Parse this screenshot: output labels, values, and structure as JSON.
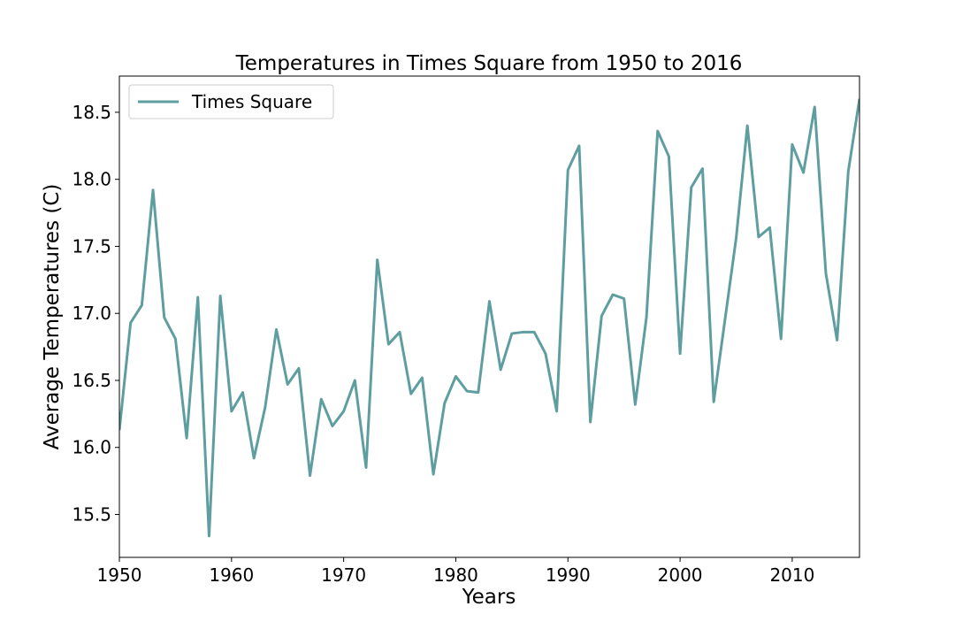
{
  "chart_data": {
    "type": "line",
    "title": "Temperatures in Times Square from 1950 to 2016",
    "xlabel": "Years",
    "ylabel": "Average Temperatures (C)",
    "xlim": [
      1950,
      2016
    ],
    "ylim": [
      15.18,
      18.77
    ],
    "x_ticks": [
      1950,
      1960,
      1970,
      1980,
      1990,
      2000,
      2010
    ],
    "y_ticks": [
      "15.5",
      "16.0",
      "16.5",
      "17.0",
      "17.5",
      "18.0",
      "18.5"
    ],
    "grid": false,
    "legend_position": "upper-left",
    "series": [
      {
        "name": "Times Square",
        "color": "#5f9ea0",
        "x": [
          1950,
          1951,
          1952,
          1953,
          1954,
          1955,
          1956,
          1957,
          1958,
          1959,
          1960,
          1961,
          1962,
          1963,
          1964,
          1965,
          1966,
          1967,
          1968,
          1969,
          1970,
          1971,
          1972,
          1973,
          1974,
          1975,
          1976,
          1977,
          1978,
          1979,
          1980,
          1981,
          1982,
          1983,
          1984,
          1985,
          1986,
          1987,
          1988,
          1989,
          1990,
          1991,
          1992,
          1993,
          1994,
          1995,
          1996,
          1997,
          1998,
          1999,
          2000,
          2001,
          2002,
          2003,
          2004,
          2005,
          2006,
          2007,
          2008,
          2009,
          2010,
          2011,
          2012,
          2013,
          2014,
          2015,
          2016
        ],
        "values": [
          16.13,
          16.93,
          17.06,
          17.92,
          16.97,
          16.81,
          16.07,
          17.12,
          15.34,
          17.13,
          16.27,
          16.41,
          15.92,
          16.3,
          16.88,
          16.47,
          16.59,
          15.79,
          16.36,
          16.16,
          16.27,
          16.5,
          15.85,
          17.4,
          16.77,
          16.86,
          16.4,
          16.52,
          15.8,
          16.33,
          16.53,
          16.42,
          16.41,
          17.09,
          16.58,
          16.85,
          16.86,
          16.86,
          16.7,
          16.27,
          18.07,
          18.25,
          16.19,
          16.98,
          17.14,
          17.11,
          16.32,
          16.97,
          18.36,
          18.17,
          16.7,
          17.94,
          18.08,
          16.34,
          16.95,
          17.56,
          18.4,
          17.57,
          17.64,
          16.81,
          18.26,
          18.05,
          18.54,
          17.3,
          16.8,
          18.06,
          18.6
        ]
      }
    ]
  }
}
